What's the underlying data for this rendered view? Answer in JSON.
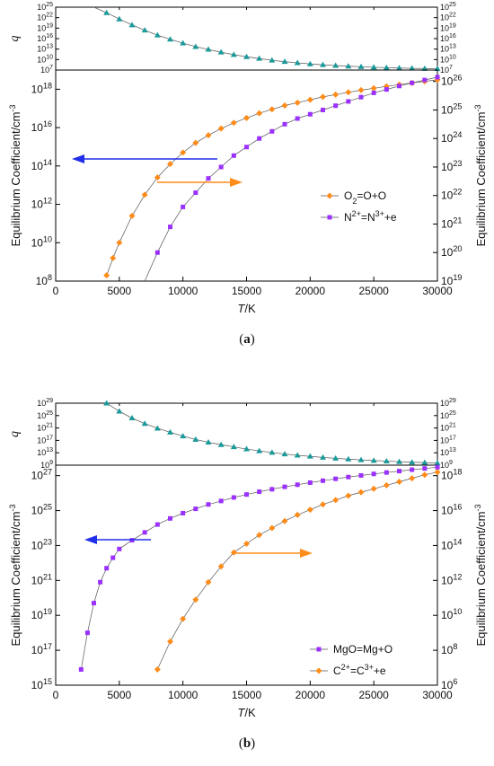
{
  "chart_data": [
    {
      "id": "a",
      "caption": "(a)",
      "type": "line",
      "xlabel": "T/K",
      "xlim": [
        0,
        30000
      ],
      "xticks": [
        "0",
        "5000",
        "10000",
        "15000",
        "20000",
        "25000",
        "30000"
      ],
      "q_panel": {
        "ylabel": "q",
        "yscale": "log",
        "ylim_exp": [
          7,
          25
        ],
        "ytick_exps": [
          7,
          10,
          13,
          16,
          19,
          22,
          25
        ],
        "series": {
          "x": [
            3000,
            4000,
            5000,
            6000,
            7000,
            8000,
            9000,
            10000,
            11000,
            12000,
            13000,
            14000,
            15000,
            16000,
            17000,
            18000,
            19000,
            20000,
            21000,
            22000,
            23000,
            24000,
            25000,
            26000,
            27000,
            28000,
            29000,
            30000
          ],
          "log10_y": [
            25.3,
            23.4,
            21.6,
            19.9,
            18.4,
            17.0,
            15.8,
            14.7,
            13.7,
            12.9,
            12.1,
            11.4,
            10.8,
            10.3,
            9.8,
            9.4,
            9.05,
            8.75,
            8.5,
            8.28,
            8.1,
            7.93,
            7.8,
            7.68,
            7.58,
            7.5,
            7.43,
            7.37
          ]
        }
      },
      "left_axis": {
        "ylabel": "Equilibrium Coefficient/cm-3",
        "ylim_exp": [
          8,
          19
        ],
        "ytick_exps": [
          8,
          10,
          12,
          14,
          16,
          18
        ]
      },
      "right_axis": {
        "ylabel": "Equilibrium Coefficient/cm-3",
        "ylim_exp": [
          19,
          26.4
        ],
        "ytick_exps": [
          19,
          20,
          21,
          22,
          23,
          24,
          25,
          26
        ]
      },
      "series": [
        {
          "name": "O2=O+O",
          "axis": "left",
          "color": "#ff8c1a",
          "marker": "diamond",
          "x": [
            4000,
            4500,
            5000,
            6000,
            7000,
            8000,
            9000,
            10000,
            11000,
            12000,
            13000,
            14000,
            15000,
            16000,
            17000,
            18000,
            19000,
            20000,
            21000,
            22000,
            23000,
            24000,
            25000,
            26000,
            27000,
            28000,
            29000,
            30000
          ],
          "log10_y": [
            8.3,
            9.2,
            10.0,
            11.4,
            12.5,
            13.4,
            14.1,
            14.7,
            15.2,
            15.6,
            15.95,
            16.25,
            16.5,
            16.75,
            16.95,
            17.15,
            17.3,
            17.45,
            17.6,
            17.72,
            17.84,
            17.95,
            18.05,
            18.15,
            18.24,
            18.33,
            18.41,
            18.49
          ]
        },
        {
          "name": "N2+=N3++e",
          "axis": "right",
          "color": "#9b30ff",
          "marker": "square",
          "x": [
            7000,
            8000,
            9000,
            10000,
            11000,
            12000,
            13000,
            14000,
            15000,
            16000,
            17000,
            18000,
            19000,
            20000,
            21000,
            22000,
            23000,
            24000,
            25000,
            26000,
            27000,
            28000,
            29000,
            30000
          ],
          "log10_y": [
            18.8,
            20.0,
            20.9,
            21.6,
            22.1,
            22.6,
            23.0,
            23.4,
            23.7,
            24.0,
            24.25,
            24.5,
            24.7,
            24.85,
            25.0,
            25.15,
            25.3,
            25.45,
            25.6,
            25.72,
            25.84,
            25.95,
            26.05,
            26.15
          ]
        }
      ],
      "annotations": {
        "left_arrow": "points to left axis",
        "right_arrow": "points to right axis"
      },
      "legend_position": "center-right"
    },
    {
      "id": "b",
      "caption": "(b)",
      "type": "line",
      "xlabel": "T/K",
      "xlim": [
        0,
        30000
      ],
      "xticks": [
        "0",
        "5000",
        "10000",
        "15000",
        "20000",
        "25000",
        "30000"
      ],
      "q_panel": {
        "ylabel": "q",
        "yscale": "log",
        "ylim_exp": [
          9,
          29
        ],
        "ytick_exps": [
          9,
          13,
          17,
          21,
          25,
          29
        ],
        "series": {
          "x": [
            4000,
            5000,
            6000,
            7000,
            8000,
            9000,
            10000,
            11000,
            12000,
            13000,
            14000,
            15000,
            16000,
            17000,
            18000,
            19000,
            20000,
            21000,
            22000,
            23000,
            24000,
            25000,
            26000,
            27000,
            28000,
            29000,
            30000
          ],
          "log10_y": [
            29.0,
            26.4,
            24.2,
            22.4,
            20.9,
            19.6,
            18.4,
            17.3,
            16.4,
            15.6,
            14.9,
            14.2,
            13.6,
            13.1,
            12.6,
            12.2,
            11.85,
            11.5,
            11.2,
            10.95,
            10.7,
            10.5,
            10.3,
            10.12,
            9.96,
            9.82,
            9.7
          ]
        }
      },
      "left_axis": {
        "ylabel": "Equilibrium Coefficient/cm-3",
        "ylim_exp": [
          15,
          27.6
        ],
        "ytick_exps": [
          15,
          17,
          19,
          21,
          23,
          25,
          27
        ]
      },
      "right_axis": {
        "ylabel": "Equilibrium Coefficient/cm-3",
        "ylim_exp": [
          6,
          18.6
        ],
        "ytick_exps": [
          6,
          8,
          10,
          12,
          14,
          16,
          18
        ]
      },
      "series": [
        {
          "name": "MgO=Mg+O",
          "axis": "left",
          "color": "#9b30ff",
          "marker": "square",
          "x": [
            2000,
            2500,
            3000,
            3500,
            4000,
            4500,
            5000,
            6000,
            7000,
            8000,
            9000,
            10000,
            11000,
            12000,
            13000,
            14000,
            15000,
            16000,
            17000,
            18000,
            19000,
            20000,
            21000,
            22000,
            23000,
            24000,
            25000,
            26000,
            27000,
            28000,
            29000,
            30000
          ],
          "log10_y": [
            15.9,
            18.0,
            19.7,
            20.9,
            21.7,
            22.3,
            22.8,
            23.3,
            23.75,
            24.2,
            24.55,
            24.85,
            25.1,
            25.35,
            25.55,
            25.75,
            25.92,
            26.08,
            26.22,
            26.36,
            26.48,
            26.6,
            26.71,
            26.82,
            26.92,
            27.01,
            27.1,
            27.18,
            27.26,
            27.34,
            27.41,
            27.48
          ]
        },
        {
          "name": "C2+=C3++e",
          "axis": "right",
          "color": "#ff8c1a",
          "marker": "diamond",
          "x": [
            8000,
            9000,
            10000,
            11000,
            12000,
            13000,
            14000,
            15000,
            16000,
            17000,
            18000,
            19000,
            20000,
            21000,
            22000,
            23000,
            24000,
            25000,
            26000,
            27000,
            28000,
            29000,
            30000
          ],
          "log10_y": [
            6.9,
            8.5,
            9.8,
            10.9,
            11.9,
            12.8,
            13.6,
            14.1,
            14.6,
            15.0,
            15.4,
            15.75,
            16.05,
            16.35,
            16.6,
            16.85,
            17.05,
            17.25,
            17.45,
            17.65,
            17.85,
            18.05,
            18.2
          ]
        }
      ],
      "annotations": {
        "left_arrow": "points to left axis",
        "right_arrow": "points to right axis"
      },
      "legend_position": "bottom-right"
    }
  ]
}
